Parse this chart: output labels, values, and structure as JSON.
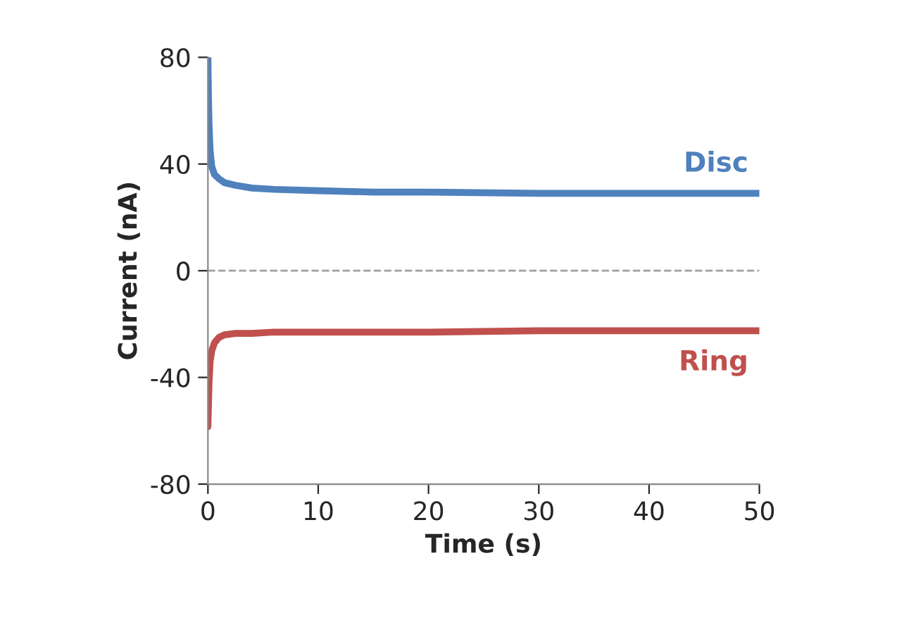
{
  "chart_data": {
    "type": "line",
    "xlabel": "Time (s)",
    "ylabel": "Current (nA)",
    "xlim": [
      0,
      50
    ],
    "xticks": [
      0,
      10,
      20,
      30,
      40,
      50
    ],
    "ylim": [
      -80,
      80
    ],
    "yticks": [
      -80,
      -40,
      0,
      40,
      80
    ],
    "grid": false,
    "legend": false,
    "series": [
      {
        "name": "Disc",
        "color": "#4f81bd",
        "x": [
          0,
          0.05,
          0.1,
          0.2,
          0.35,
          0.6,
          1,
          1.5,
          2.5,
          4,
          6,
          10,
          15,
          20,
          30,
          40,
          50
        ],
        "values": [
          80,
          65,
          55,
          45,
          39,
          36,
          34.5,
          33,
          32,
          31,
          30.5,
          30,
          29.5,
          29.5,
          29,
          29,
          29
        ]
      },
      {
        "name": "Ring",
        "color": "#c0504d",
        "x": [
          0,
          0.05,
          0.1,
          0.2,
          0.35,
          0.6,
          1,
          1.5,
          2.5,
          4,
          6,
          10,
          20,
          30,
          40,
          50
        ],
        "values": [
          -58.5,
          -50,
          -42,
          -34,
          -30,
          -27,
          -25,
          -24,
          -23.5,
          -23.5,
          -23,
          -23,
          -23,
          -22.5,
          -22.5,
          -22.5
        ]
      }
    ],
    "ref_lines": [
      {
        "axis": "y",
        "value": 0,
        "color": "#a0a0a0",
        "line_style": "dashed"
      }
    ]
  }
}
